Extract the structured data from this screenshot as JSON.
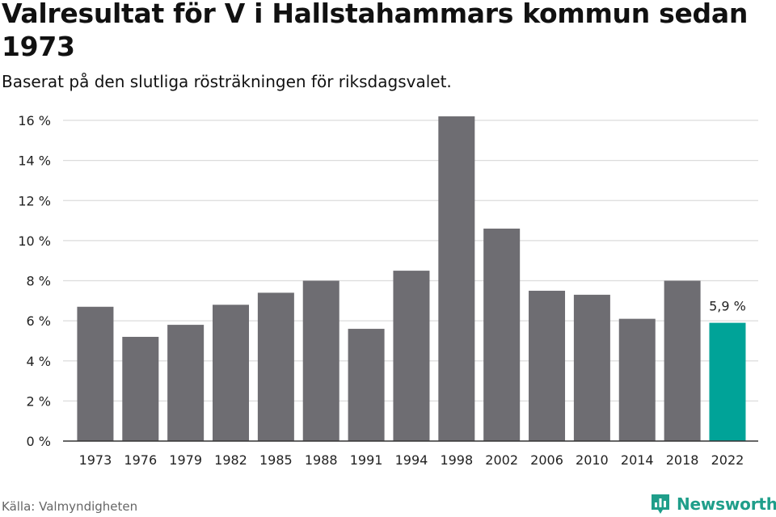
{
  "chart_data": {
    "type": "bar",
    "title": "Valresultat för V i Hallstahammars kommun sedan 1973",
    "subtitle": "Baserat på den slutliga rösträkningen för riksdagsvalet.",
    "categories": [
      "1973",
      "1976",
      "1979",
      "1982",
      "1985",
      "1988",
      "1991",
      "1994",
      "1998",
      "2002",
      "2006",
      "2010",
      "2014",
      "2018",
      "2022"
    ],
    "values": [
      6.7,
      5.2,
      5.8,
      6.8,
      7.4,
      8.0,
      5.6,
      8.5,
      16.2,
      10.6,
      7.5,
      7.3,
      6.1,
      8.0,
      5.9
    ],
    "ylim": [
      0,
      16
    ],
    "yticks": [
      0,
      2,
      4,
      6,
      8,
      10,
      12,
      14,
      16
    ],
    "ytick_suffix": " %",
    "grid": true,
    "annotation": {
      "category": "2022",
      "label": "5,9 %"
    },
    "colors": {
      "bar": "#6e6d72",
      "highlight": "#00a398",
      "grid": "#dcdcdc",
      "axis": "#333333"
    }
  },
  "source": "Källa: Valmyndigheten",
  "brand": {
    "name": "Newsworthy",
    "icon": "bar-chart-logo-icon",
    "color": "#1f9e8a"
  }
}
